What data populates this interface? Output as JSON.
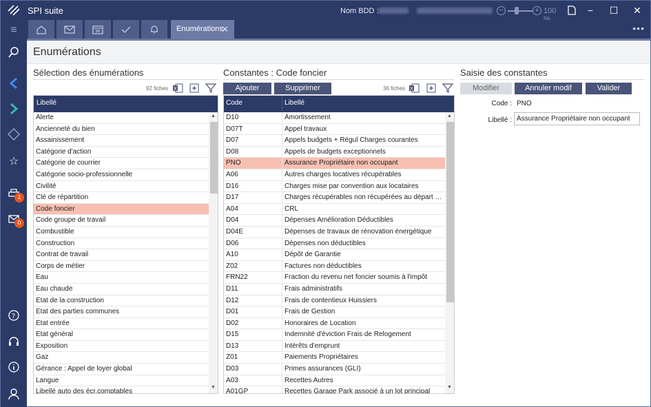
{
  "app": {
    "title": "SPI suite",
    "bdd_label": "Nom BDD :",
    "zoom": "100 %"
  },
  "tabs": {
    "active": "Enumérations"
  },
  "badges": {
    "print": "1",
    "mail": "0"
  },
  "page": {
    "title": "Enumérations"
  },
  "left": {
    "title": "Sélection des énumérations",
    "count": "92 fiches",
    "header": "Libellé",
    "items": [
      "Alerte",
      "Ancienneté du bien",
      "Assainissement",
      "Catégorie d'action",
      "Catégorie de courrier",
      "Catégorie socio-professionnelle",
      "Civilité",
      "Clé de répartition",
      "Code foncier",
      "Code groupe de travail",
      "Combustible",
      "Construction",
      "Contrat de travail",
      "Corps de métier",
      "Eau",
      "Eau chaude",
      "Etat de la construction",
      "Etat des parties communes",
      "Etat entrée",
      "Etat général",
      "Exposition",
      "Gaz",
      "Gérance : Appel de loyer global",
      "Langue",
      "Libellé auto des écr.comptables"
    ],
    "selected": "Code foncier"
  },
  "middle": {
    "title": "Constantes : Code foncier",
    "count": "36 fiches",
    "add": "Ajouter",
    "delete": "Supprimer",
    "header_code": "Code",
    "header_label": "Libellé",
    "rows": [
      {
        "code": "D10",
        "label": "Amortissement"
      },
      {
        "code": "D07T",
        "label": "Appel travaux"
      },
      {
        "code": "D07",
        "label": "Appels budgets + Régul Charges courantes"
      },
      {
        "code": "D08",
        "label": "Appels de budgets exceptionnels"
      },
      {
        "code": "PNO",
        "label": "Assurance Propriétaire non occupant"
      },
      {
        "code": "A06",
        "label": "Autres charges locatives récupérables"
      },
      {
        "code": "D16",
        "label": "Charges mise par convention aux locataires"
      },
      {
        "code": "D17",
        "label": "Charges récupérables non récupérées au départ du l..."
      },
      {
        "code": "A04",
        "label": "CRL"
      },
      {
        "code": "D04",
        "label": "Dépenses Amélioration Déductibles"
      },
      {
        "code": "D04E",
        "label": "Dépenses de travaux de rénovation énergétique"
      },
      {
        "code": "D06",
        "label": "Dépenses non déductibles"
      },
      {
        "code": "A10",
        "label": "Dépôt de Garantie"
      },
      {
        "code": "Z02",
        "label": "Factures non déductibles"
      },
      {
        "code": "FRN22",
        "label": "Fraction du revenu net foncier soumis à l'impôt"
      },
      {
        "code": "D11",
        "label": "Frais administratifs"
      },
      {
        "code": "D12",
        "label": "Frais de contentieux Huissiers"
      },
      {
        "code": "D01",
        "label": "Frais de Gestion"
      },
      {
        "code": "D02",
        "label": "Honoraires de Location"
      },
      {
        "code": "D15",
        "label": "Indemnité d'éviction Frais de Relogement"
      },
      {
        "code": "D13",
        "label": "Intérêts d'emprunt"
      },
      {
        "code": "Z01",
        "label": "Paiements Propriétaires"
      },
      {
        "code": "D03",
        "label": "Primes assurances (GLI)"
      },
      {
        "code": "A03",
        "label": "Recettes Autres"
      },
      {
        "code": "A01GP",
        "label": "Recettes Garage Park associé à un lot principal"
      }
    ],
    "selected": "PNO"
  },
  "right": {
    "title": "Saisie des constantes",
    "modify": "Modifier",
    "cancel": "Annuler modif",
    "validate": "Valider",
    "code_label": "Code :",
    "code_value": "PNO",
    "libelle_label": "Libellé :",
    "libelle_value": "Assurance Propriétaire non occupant"
  }
}
